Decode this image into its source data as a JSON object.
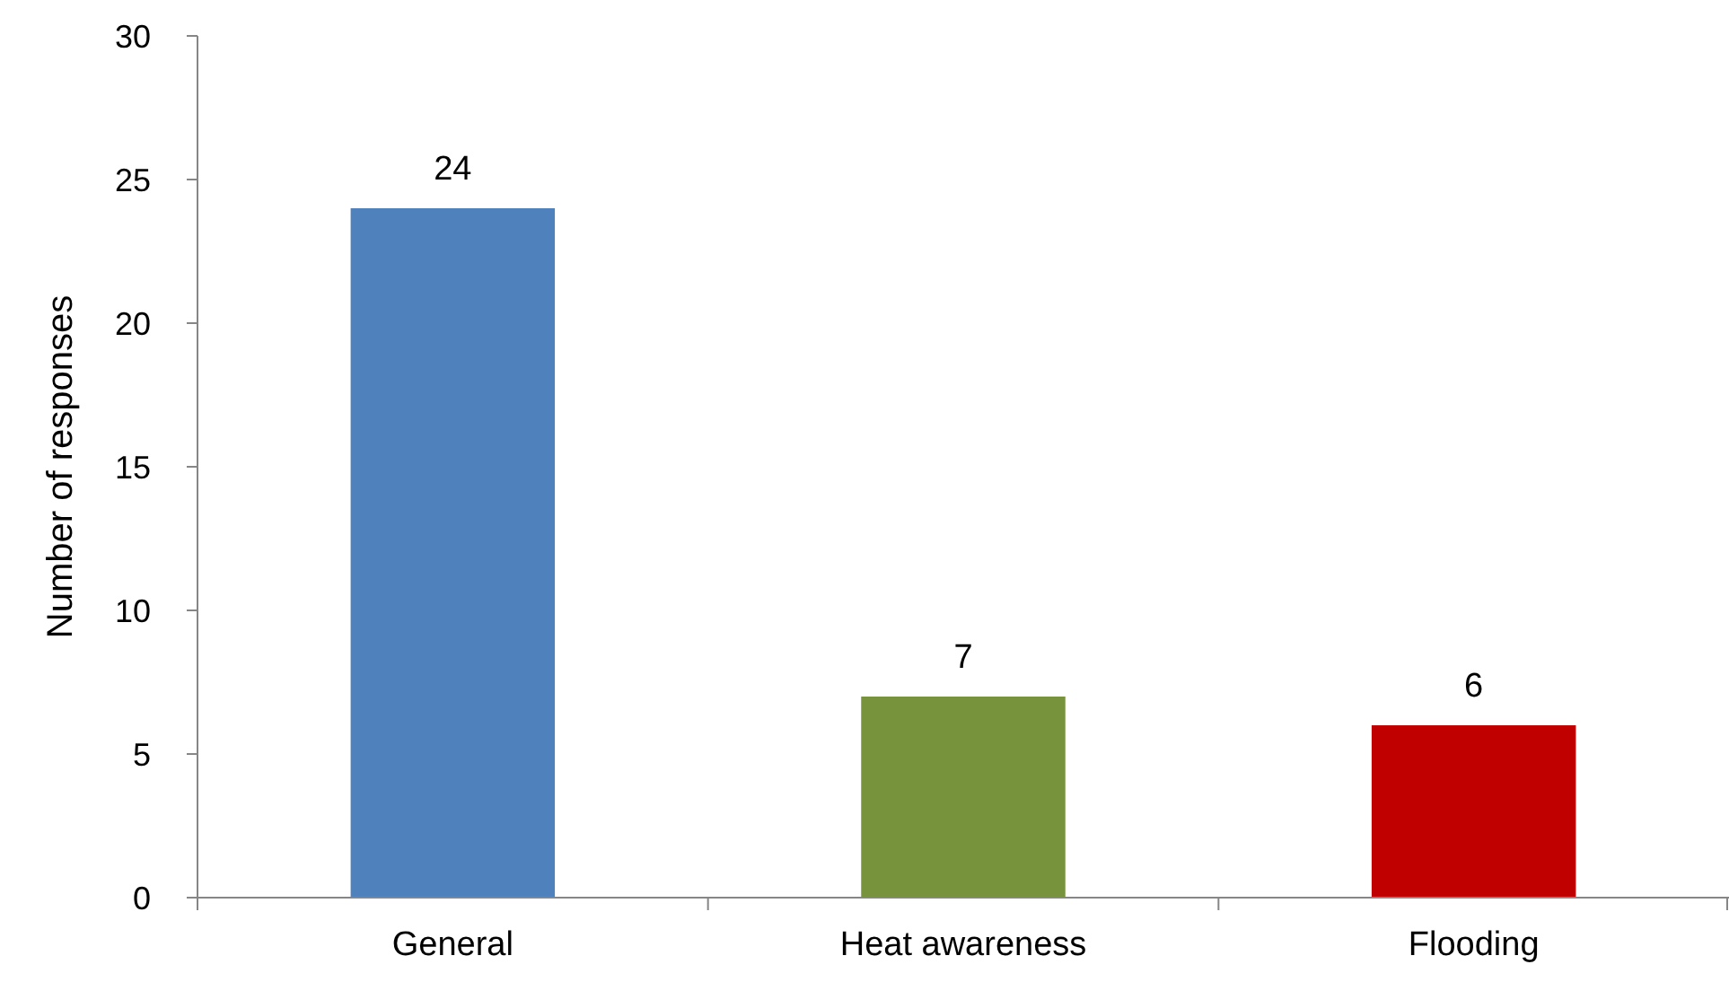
{
  "chart_data": {
    "type": "bar",
    "ylabel": "Number of responses",
    "categories": [
      "General",
      "Heat awareness",
      "Flooding"
    ],
    "values": [
      24,
      7,
      6
    ],
    "colors": [
      "#4f81bd",
      "#77933c",
      "#c00000"
    ],
    "ylim": [
      0,
      30
    ],
    "yticks": [
      0,
      5,
      10,
      15,
      20,
      25,
      30
    ],
    "data_labels": true
  }
}
